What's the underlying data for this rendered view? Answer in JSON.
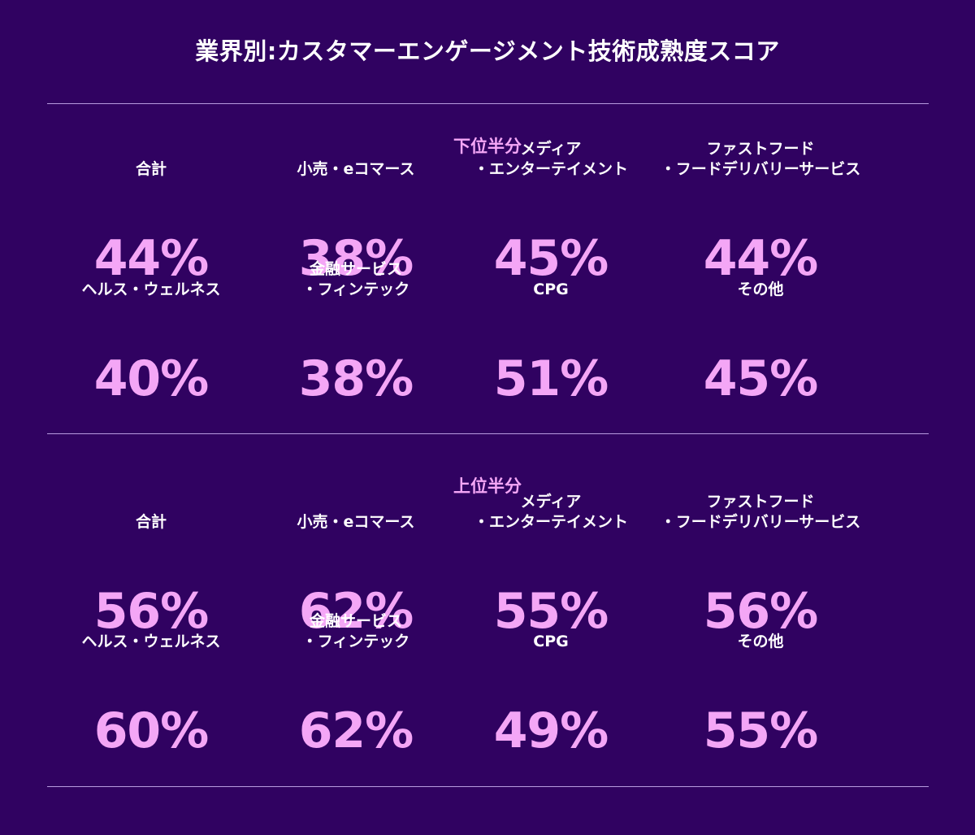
{
  "title": "業界別:カスタマーエンゲージメント技術成熟度スコア",
  "colors": {
    "background": "#300261",
    "accent": "#f4a6f6",
    "text": "#ffffff",
    "divider": "#b79be0"
  },
  "chart_data": {
    "type": "table",
    "title": "業界別:カスタマーエンゲージメント技術成熟度スコア",
    "sections": [
      {
        "label": "下位半分",
        "cells": [
          {
            "label": "合計",
            "value": "44%"
          },
          {
            "label": "小売・eコマース",
            "value": "38%"
          },
          {
            "label": "メディア\n・エンターテイメント",
            "value": "45%"
          },
          {
            "label": "ファストフード\n・フードデリバリーサービス",
            "value": "44%"
          },
          {
            "label": "ヘルス・ウェルネス",
            "value": "40%"
          },
          {
            "label": "金融サービス\n・フィンテック",
            "value": "38%"
          },
          {
            "label": "CPG",
            "value": "51%"
          },
          {
            "label": "その他",
            "value": "45%"
          }
        ]
      },
      {
        "label": "上位半分",
        "cells": [
          {
            "label": "合計",
            "value": "56%"
          },
          {
            "label": "小売・eコマース",
            "value": "62%"
          },
          {
            "label": "メディア\n・エンターテイメント",
            "value": "55%"
          },
          {
            "label": "ファストフード\n・フードデリバリーサービス",
            "value": "56%"
          },
          {
            "label": "ヘルス・ウェルネス",
            "value": "60%"
          },
          {
            "label": "金融サービス\n・フィンテック",
            "value": "62%"
          },
          {
            "label": "CPG",
            "value": "49%"
          },
          {
            "label": "その他",
            "value": "55%"
          }
        ]
      }
    ]
  }
}
